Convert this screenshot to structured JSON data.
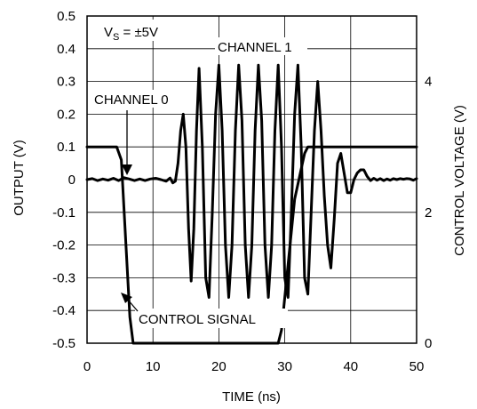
{
  "chart_data": {
    "type": "line",
    "xlabel": "TIME (ns)",
    "ylabel": "OUTPUT (V)",
    "y2label": "CONTROL VOLTAGE (V)",
    "xlim": [
      0,
      50
    ],
    "ylim": [
      -0.5,
      0.5
    ],
    "y2lim": [
      0,
      5
    ],
    "grid": true,
    "x_ticks": [
      0,
      10,
      20,
      30,
      40,
      50
    ],
    "x_tick_labels": [
      "0",
      "10",
      "20",
      "30",
      "40",
      "50"
    ],
    "y_ticks": [
      0.5,
      0.4,
      0.3,
      0.2,
      0.1,
      0,
      -0.1,
      -0.2,
      -0.3,
      -0.4,
      -0.5
    ],
    "y_tick_labels": [
      "0.5",
      "0.4",
      "0.3",
      "0.2",
      "0.1",
      "0",
      "-0.1",
      "-0.2",
      "-0.3",
      "-0.4",
      "-0.5"
    ],
    "y2_ticks": [
      4,
      2,
      0
    ],
    "y2_tick_labels": [
      "4",
      "2",
      "0"
    ],
    "annotations": {
      "vs": {
        "main": "V",
        "sub": "S",
        "rest": " = ±5V"
      },
      "channel1": "CHANNEL 1",
      "channel0": "CHANNEL 0",
      "control": "CONTROL SIGNAL"
    },
    "series": [
      {
        "axis": "y2",
        "x": [
          0,
          4.5,
          5.2,
          6.5,
          7,
          29,
          29.5,
          30.5,
          31.5,
          33,
          33.5,
          50
        ],
        "y": [
          3,
          3,
          2.8,
          0.4,
          0,
          0,
          0.2,
          1.2,
          2.2,
          2.9,
          3,
          3
        ]
      },
      {
        "axis": "y",
        "x": [
          0,
          0.8,
          1.6,
          2.4,
          3.2,
          4,
          4.8,
          5.6,
          6.4,
          7.2,
          8,
          8.8,
          9.6,
          10.4,
          11.2,
          12,
          12.6,
          13,
          13.4,
          13.8,
          14.2,
          14.6,
          15,
          15.4,
          15.8,
          16.2,
          16.6,
          17,
          17.5,
          18,
          18.5,
          19,
          19.5,
          20,
          20.5,
          21,
          21.5,
          22,
          22.5,
          23,
          23.5,
          24,
          24.5,
          25,
          25.5,
          26,
          26.5,
          27,
          27.5,
          28,
          28.5,
          29,
          29.5,
          30,
          30.5,
          31,
          31.5,
          32,
          32.5,
          33,
          33.5,
          34,
          34.5,
          35,
          35.5,
          36,
          36.5,
          37,
          37.5,
          38,
          38.5,
          39,
          39.5,
          40,
          40.5,
          41,
          41.5,
          42,
          42.5,
          43,
          43.5,
          44,
          44.5,
          45,
          45.5,
          46,
          46.5,
          47,
          47.5,
          48,
          48.5,
          49,
          49.5,
          50
        ],
        "y": [
          0,
          0.003,
          -0.003,
          0.002,
          -0.002,
          0.004,
          -0.003,
          0.006,
          0.002,
          -0.003,
          0.002,
          -0.003,
          0.002,
          0.004,
          0,
          -0.005,
          0.005,
          -0.01,
          -0.005,
          0.05,
          0.15,
          0.2,
          0.1,
          -0.15,
          -0.31,
          -0.15,
          0.15,
          0.34,
          0.1,
          -0.3,
          -0.36,
          -0.1,
          0.2,
          0.35,
          0.15,
          -0.2,
          -0.36,
          -0.2,
          0.15,
          0.35,
          0.18,
          -0.2,
          -0.36,
          -0.2,
          0.15,
          0.35,
          0.18,
          -0.2,
          -0.36,
          -0.2,
          0.15,
          0.35,
          0.1,
          -0.3,
          -0.36,
          -0.1,
          0.2,
          0.35,
          0.1,
          -0.3,
          -0.35,
          -0.1,
          0.15,
          0.3,
          0.15,
          -0.05,
          -0.2,
          -0.27,
          -0.12,
          0.05,
          0.08,
          0.02,
          -0.04,
          -0.04,
          0,
          0.02,
          0.03,
          0.03,
          0.01,
          -0.003,
          0.004,
          -0.002,
          0.003,
          -0.003,
          0.002,
          -0.002,
          0.003,
          0,
          0.003,
          0.001,
          0.003,
          0.002,
          -0.002,
          0.003
        ]
      }
    ]
  }
}
